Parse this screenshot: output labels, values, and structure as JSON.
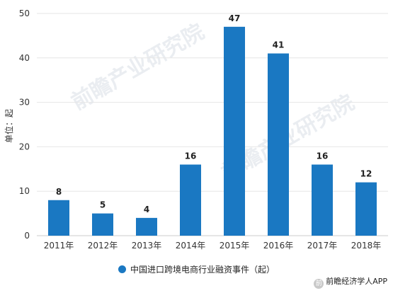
{
  "chart_data": {
    "type": "bar",
    "categories": [
      "2011年",
      "2012年",
      "2013年",
      "2014年",
      "2015年",
      "2016年",
      "2017年",
      "2018年"
    ],
    "values": [
      8,
      5,
      4,
      16,
      47,
      41,
      16,
      12
    ],
    "ylabel": "单位：起",
    "ylim": [
      0,
      50
    ],
    "yticks": [
      0,
      10,
      20,
      30,
      40,
      50
    ],
    "grid": true,
    "bar_color": "#1a78c2",
    "legend": {
      "label": "中国进口跨境电商行业融资事件（起）",
      "position": "bottom"
    },
    "data_labels": true
  },
  "watermark": "前瞻产业研究院",
  "source": {
    "icon": "前",
    "label": "前瞻经济学人APP"
  }
}
